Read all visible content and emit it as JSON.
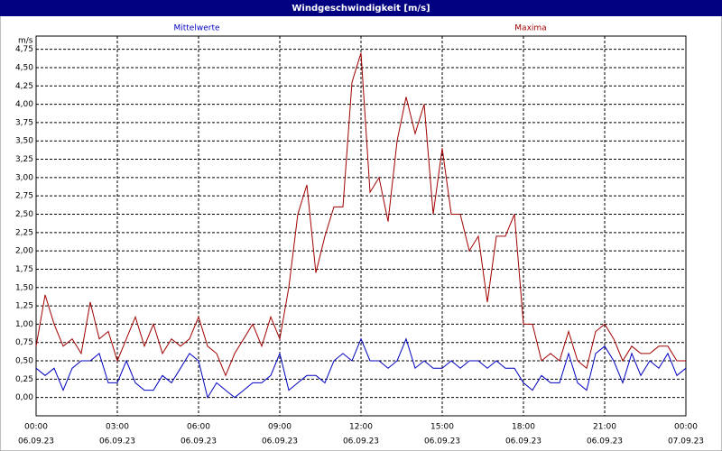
{
  "chart_data": {
    "type": "line",
    "title": "Windgeschwindigkeit [m/s]",
    "y_label": "m/s",
    "x": [
      0,
      20,
      40,
      60,
      80,
      100,
      120,
      140,
      160,
      180,
      200,
      220,
      240,
      260,
      280,
      300,
      320,
      340,
      360,
      380,
      400,
      420,
      440,
      460,
      480,
      500,
      520,
      540,
      560,
      580,
      600,
      620,
      640,
      660,
      680,
      700,
      720,
      740,
      760,
      780,
      800,
      820,
      840,
      860,
      880,
      900,
      920,
      940,
      960,
      980,
      1000,
      1020,
      1040,
      1060,
      1080,
      1100,
      1120,
      1140,
      1160,
      1180,
      1200,
      1220,
      1240,
      1260,
      1280,
      1300,
      1320,
      1340,
      1360,
      1380,
      1400,
      1420,
      1440
    ],
    "series": [
      {
        "name": "Mittelwerte",
        "color": "#0000c0",
        "values": [
          0.4,
          0.3,
          0.4,
          0.1,
          0.4,
          0.5,
          0.5,
          0.6,
          0.2,
          0.2,
          0.5,
          0.2,
          0.1,
          0.1,
          0.3,
          0.2,
          0.4,
          0.6,
          0.5,
          0,
          0.2,
          0.1,
          0,
          0.1,
          0.2,
          0.2,
          0.3,
          0.6,
          0.1,
          0.2,
          0.3,
          0.3,
          0.2,
          0.5,
          0.6,
          0.5,
          0.8,
          0.5,
          0.5,
          0.4,
          0.5,
          0.8,
          0.4,
          0.5,
          0.4,
          0.4,
          0.5,
          0.4,
          0.5,
          0.5,
          0.4,
          0.5,
          0.4,
          0.4,
          0.2,
          0.1,
          0.3,
          0.2,
          0.2,
          0.6,
          0.2,
          0.1,
          0.6,
          0.7,
          0.5,
          0.2,
          0.6,
          0.3,
          0.5,
          0.4,
          0.6,
          0.3,
          0.4
        ]
      },
      {
        "name": "Maxima",
        "color": "#a00000",
        "values": [
          0.7,
          1.4,
          1.0,
          0.7,
          0.8,
          0.6,
          1.3,
          0.8,
          0.9,
          0.5,
          0.8,
          1.1,
          0.7,
          1.0,
          0.6,
          0.8,
          0.7,
          0.8,
          1.1,
          0.7,
          0.6,
          0.3,
          0.6,
          0.8,
          1.0,
          0.7,
          1.1,
          0.8,
          1.5,
          2.5,
          2.9,
          1.7,
          2.2,
          2.6,
          2.6,
          4.3,
          4.7,
          2.8,
          3.0,
          2.4,
          3.5,
          4.1,
          3.6,
          4.0,
          2.5,
          3.4,
          2.5,
          2.5,
          2.0,
          2.2,
          1.3,
          2.2,
          2.2,
          2.5,
          1.0,
          1.0,
          0.5,
          0.6,
          0.5,
          0.9,
          0.5,
          0.4,
          0.9,
          1.0,
          0.8,
          0.5,
          0.7,
          0.6,
          0.6,
          0.7,
          0.7,
          0.5,
          0.5
        ]
      }
    ],
    "xlim": [
      0,
      1440
    ],
    "xticks": [
      {
        "value": 0,
        "label": "00:00",
        "date": "06.09.23"
      },
      {
        "value": 180,
        "label": "03:00",
        "date": "06.09.23"
      },
      {
        "value": 360,
        "label": "06:00",
        "date": "06.09.23"
      },
      {
        "value": 540,
        "label": "09:00",
        "date": "06.09.23"
      },
      {
        "value": 720,
        "label": "12:00",
        "date": "06.09.23"
      },
      {
        "value": 900,
        "label": "15:00",
        "date": "06.09.23"
      },
      {
        "value": 1080,
        "label": "18:00",
        "date": "06.09.23"
      },
      {
        "value": 1260,
        "label": "21:00",
        "date": "06.09.23"
      },
      {
        "value": 1440,
        "label": "00:00",
        "date": "07.09.23"
      }
    ],
    "ylim": [
      -0.25,
      4.93
    ],
    "yticks": [
      {
        "value": 0,
        "label": "0,00"
      },
      {
        "value": 0.25,
        "label": "0,25"
      },
      {
        "value": 0.5,
        "label": "0,50"
      },
      {
        "value": 0.75,
        "label": "0,75"
      },
      {
        "value": 1,
        "label": "1,00"
      },
      {
        "value": 1.25,
        "label": "1,25"
      },
      {
        "value": 1.5,
        "label": "1,50"
      },
      {
        "value": 1.75,
        "label": "1,75"
      },
      {
        "value": 2,
        "label": "2,00"
      },
      {
        "value": 2.25,
        "label": "2,25"
      },
      {
        "value": 2.5,
        "label": "2,50"
      },
      {
        "value": 2.75,
        "label": "2,75"
      },
      {
        "value": 3,
        "label": "3,00"
      },
      {
        "value": 3.25,
        "label": "3,25"
      },
      {
        "value": 3.5,
        "label": "3,50"
      },
      {
        "value": 3.75,
        "label": "3,75"
      },
      {
        "value": 4,
        "label": "4,00"
      },
      {
        "value": 4.25,
        "label": "4,25"
      },
      {
        "value": 4.5,
        "label": "4,50"
      },
      {
        "value": 4.75,
        "label": "4,75"
      }
    ],
    "grid": true
  }
}
